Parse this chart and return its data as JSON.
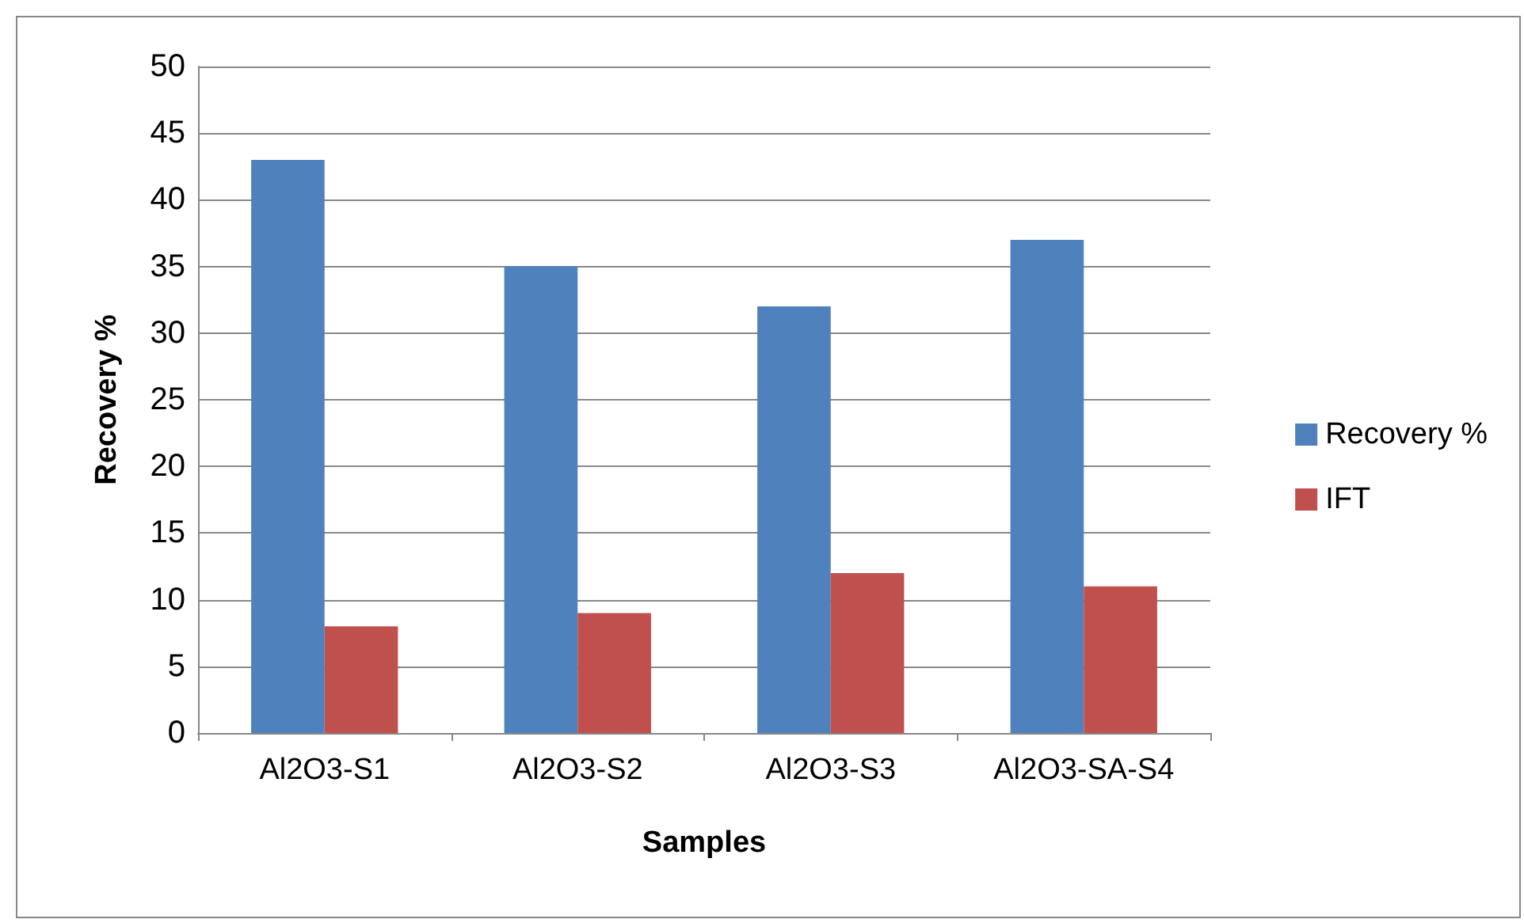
{
  "chart_data": {
    "type": "bar",
    "xlabel": "Samples",
    "ylabel": "Recovery %",
    "categories": [
      "Al2O3-S1",
      "Al2O3-S2",
      "Al2O3-S3",
      "Al2O3-SA-S4"
    ],
    "series": [
      {
        "name": "Recovery %",
        "color": "#4f81bd",
        "values": [
          43,
          35,
          32,
          37
        ]
      },
      {
        "name": "IFT",
        "color": "#c0504d",
        "values": [
          8,
          9,
          12,
          11
        ]
      }
    ],
    "ylim": [
      0,
      50
    ],
    "yticks": [
      0,
      5,
      10,
      15,
      20,
      25,
      30,
      35,
      40,
      45,
      50
    ],
    "grid": "y",
    "legend": "right"
  }
}
